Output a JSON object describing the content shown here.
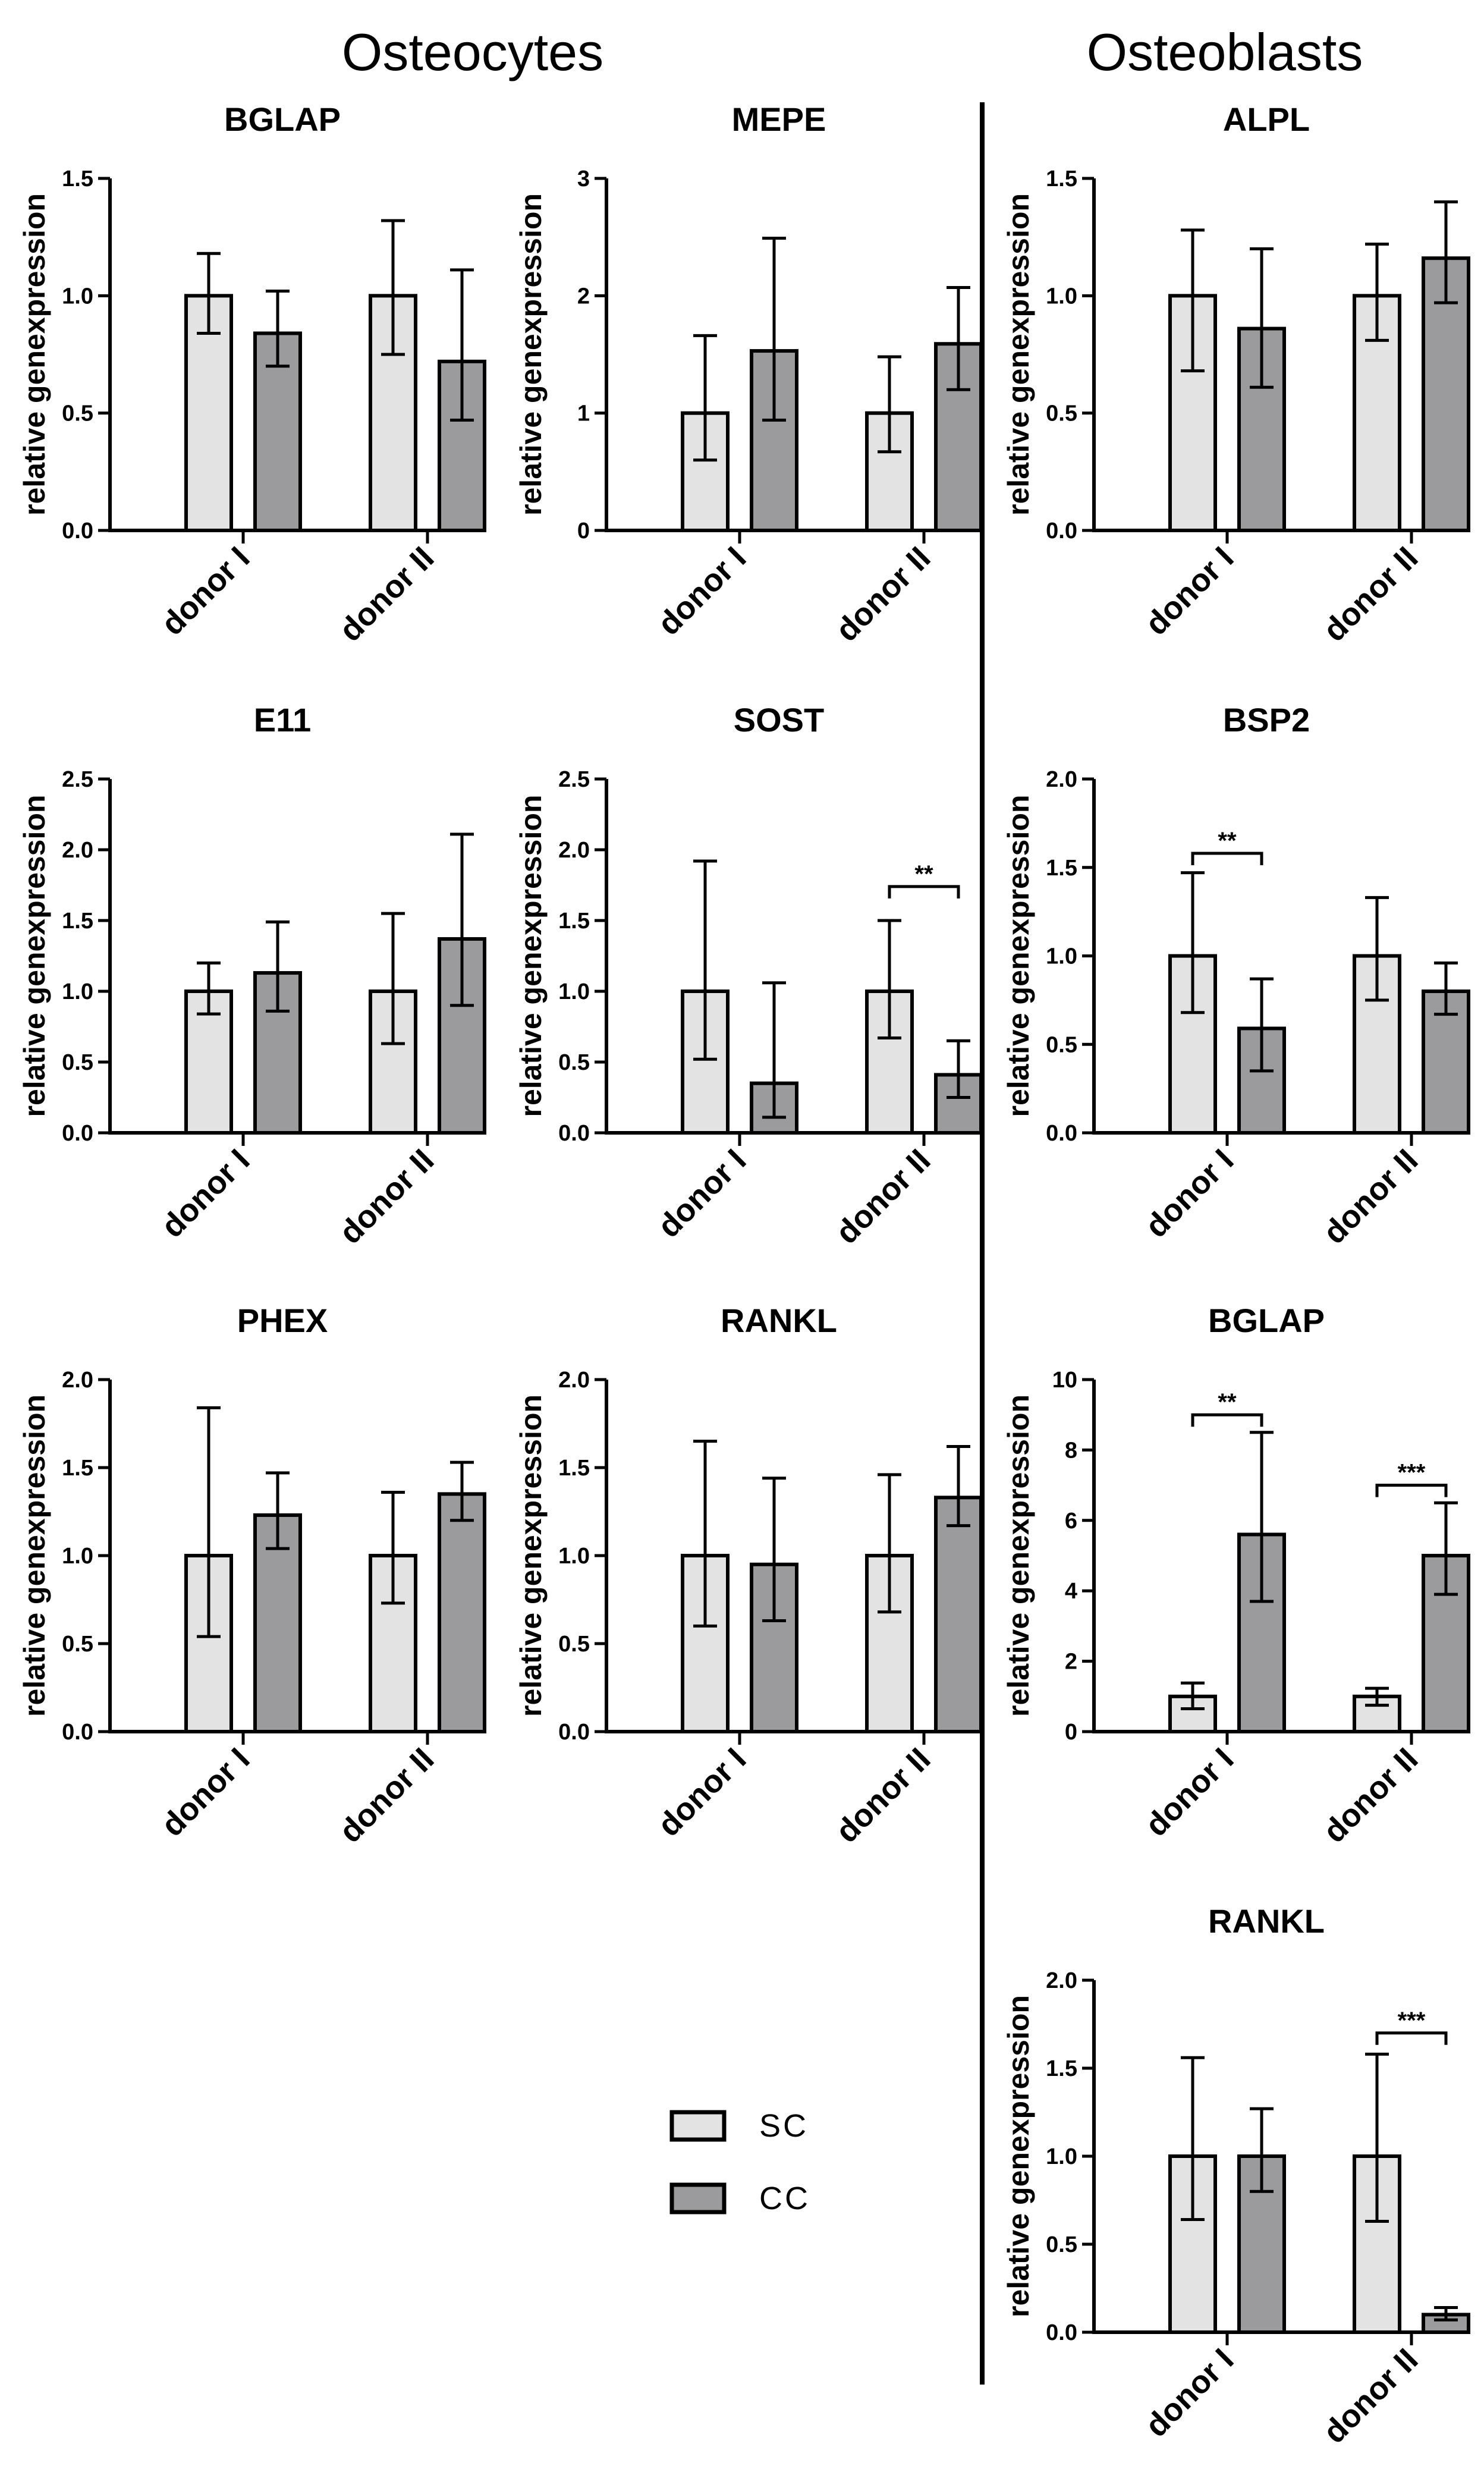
{
  "headers": {
    "left": "Osteocytes",
    "right": "Osteoblasts"
  },
  "legend": [
    {
      "label": "SC",
      "color": "#e3e3e3"
    },
    {
      "label": "CC",
      "color": "#9b9b9e"
    }
  ],
  "colors": {
    "sc": "#e3e3e3",
    "cc": "#9b9b9e",
    "stroke": "#000000"
  },
  "chart_data": [
    {
      "id": "ocy-bglap",
      "type": "bar",
      "title": "BGLAP",
      "ylabel": "relative genexpression",
      "categories": [
        "donor I",
        "donor II"
      ],
      "ylim": [
        0,
        1.5
      ],
      "yticks": [
        "0.0",
        "0.5",
        "1.0",
        "1.5"
      ],
      "series": [
        {
          "name": "SC",
          "values": [
            1.0,
            1.0
          ],
          "errors": [
            [
              0.84,
              1.18
            ],
            [
              0.75,
              1.32
            ]
          ]
        },
        {
          "name": "CC",
          "values": [
            0.84,
            0.72
          ],
          "errors": [
            [
              0.7,
              1.02
            ],
            [
              0.47,
              1.11
            ]
          ]
        }
      ],
      "significance": []
    },
    {
      "id": "ocy-mepe",
      "type": "bar",
      "title": "MEPE",
      "ylabel": "relative genexpression",
      "categories": [
        "donor I",
        "donor II"
      ],
      "ylim": [
        0,
        3
      ],
      "yticks": [
        "0",
        "1",
        "2",
        "3"
      ],
      "series": [
        {
          "name": "SC",
          "values": [
            1.0,
            1.0
          ],
          "errors": [
            [
              0.6,
              1.66
            ],
            [
              0.67,
              1.48
            ]
          ]
        },
        {
          "name": "CC",
          "values": [
            1.53,
            1.59
          ],
          "errors": [
            [
              0.94,
              2.49
            ],
            [
              1.2,
              2.07
            ]
          ]
        }
      ],
      "significance": []
    },
    {
      "id": "ocy-e11",
      "type": "bar",
      "title": "E11",
      "ylabel": "relative genexpression",
      "categories": [
        "donor I",
        "donor II"
      ],
      "ylim": [
        0,
        2.5
      ],
      "yticks": [
        "0.0",
        "0.5",
        "1.0",
        "1.5",
        "2.0",
        "2.5"
      ],
      "series": [
        {
          "name": "SC",
          "values": [
            1.0,
            1.0
          ],
          "errors": [
            [
              0.84,
              1.2
            ],
            [
              0.63,
              1.55
            ]
          ]
        },
        {
          "name": "CC",
          "values": [
            1.13,
            1.37
          ],
          "errors": [
            [
              0.86,
              1.49
            ],
            [
              0.9,
              2.11
            ]
          ]
        }
      ],
      "significance": []
    },
    {
      "id": "ocy-sost",
      "type": "bar",
      "title": "SOST",
      "ylabel": "relative genexpression",
      "categories": [
        "donor I",
        "donor II"
      ],
      "ylim": [
        0,
        2.5
      ],
      "yticks": [
        "0.0",
        "0.5",
        "1.0",
        "1.5",
        "2.0",
        "2.5"
      ],
      "series": [
        {
          "name": "SC",
          "values": [
            1.0,
            1.0
          ],
          "errors": [
            [
              0.52,
              1.92
            ],
            [
              0.67,
              1.5
            ]
          ]
        },
        {
          "name": "CC",
          "values": [
            0.35,
            0.41
          ],
          "errors": [
            [
              0.11,
              1.06
            ],
            [
              0.25,
              0.65
            ]
          ]
        }
      ],
      "significance": [
        {
          "category": 1,
          "label": "**",
          "y": 1.74
        }
      ]
    },
    {
      "id": "ocy-phex",
      "type": "bar",
      "title": "PHEX",
      "ylabel": "relative genexpression",
      "categories": [
        "donor I",
        "donor II"
      ],
      "ylim": [
        0,
        2.0
      ],
      "yticks": [
        "0.0",
        "0.5",
        "1.0",
        "1.5",
        "2.0"
      ],
      "series": [
        {
          "name": "SC",
          "values": [
            1.0,
            1.0
          ],
          "errors": [
            [
              0.54,
              1.84
            ],
            [
              0.73,
              1.36
            ]
          ]
        },
        {
          "name": "CC",
          "values": [
            1.23,
            1.35
          ],
          "errors": [
            [
              1.04,
              1.47
            ],
            [
              1.2,
              1.53
            ]
          ]
        }
      ],
      "significance": []
    },
    {
      "id": "ocy-rankl",
      "type": "bar",
      "title": "RANKL",
      "ylabel": "relative genexpression",
      "categories": [
        "donor I",
        "donor II"
      ],
      "ylim": [
        0,
        2.0
      ],
      "yticks": [
        "0.0",
        "0.5",
        "1.0",
        "1.5",
        "2.0"
      ],
      "series": [
        {
          "name": "SC",
          "values": [
            1.0,
            1.0
          ],
          "errors": [
            [
              0.6,
              1.65
            ],
            [
              0.68,
              1.46
            ]
          ]
        },
        {
          "name": "CC",
          "values": [
            0.95,
            1.33
          ],
          "errors": [
            [
              0.63,
              1.44
            ],
            [
              1.17,
              1.62
            ]
          ]
        }
      ],
      "significance": []
    },
    {
      "id": "obl-alpl",
      "type": "bar",
      "title": "ALPL",
      "ylabel": "relative genexpression",
      "categories": [
        "donor I",
        "donor II"
      ],
      "ylim": [
        0,
        1.5
      ],
      "yticks": [
        "0.0",
        "0.5",
        "1.0",
        "1.5"
      ],
      "series": [
        {
          "name": "SC",
          "values": [
            1.0,
            1.0
          ],
          "errors": [
            [
              0.68,
              1.28
            ],
            [
              0.81,
              1.22
            ]
          ]
        },
        {
          "name": "CC",
          "values": [
            0.86,
            1.16
          ],
          "errors": [
            [
              0.61,
              1.2
            ],
            [
              0.97,
              1.4
            ]
          ]
        }
      ],
      "significance": []
    },
    {
      "id": "obl-bsp2",
      "type": "bar",
      "title": "BSP2",
      "ylabel": "relative genexpression",
      "categories": [
        "donor I",
        "donor II"
      ],
      "ylim": [
        0,
        2.0
      ],
      "yticks": [
        "0.0",
        "0.5",
        "1.0",
        "1.5",
        "2.0"
      ],
      "series": [
        {
          "name": "SC",
          "values": [
            1.0,
            1.0
          ],
          "errors": [
            [
              0.68,
              1.47
            ],
            [
              0.75,
              1.33
            ]
          ]
        },
        {
          "name": "CC",
          "values": [
            0.59,
            0.8
          ],
          "errors": [
            [
              0.35,
              0.87
            ],
            [
              0.67,
              0.96
            ]
          ]
        }
      ],
      "significance": [
        {
          "category": 0,
          "label": "**",
          "y": 1.58
        }
      ]
    },
    {
      "id": "obl-bglap",
      "type": "bar",
      "title": "BGLAP",
      "ylabel": "relative genexpression",
      "categories": [
        "donor I",
        "donor II"
      ],
      "ylim": [
        0,
        10
      ],
      "yticks": [
        "0",
        "2",
        "4",
        "6",
        "8",
        "10"
      ],
      "series": [
        {
          "name": "SC",
          "values": [
            1.0,
            1.0
          ],
          "errors": [
            [
              0.65,
              1.38
            ],
            [
              0.75,
              1.23
            ]
          ]
        },
        {
          "name": "CC",
          "values": [
            5.6,
            5.0
          ],
          "errors": [
            [
              3.7,
              8.5
            ],
            [
              3.9,
              6.5
            ]
          ]
        }
      ],
      "significance": [
        {
          "category": 0,
          "label": "**",
          "y": 9.0
        },
        {
          "category": 1,
          "label": "***",
          "y": 7.0
        }
      ]
    },
    {
      "id": "obl-rankl",
      "type": "bar",
      "title": "RANKL",
      "ylabel": "relative genexpression",
      "categories": [
        "donor I",
        "donor II"
      ],
      "ylim": [
        0,
        2.0
      ],
      "yticks": [
        "0.0",
        "0.5",
        "1.0",
        "1.5",
        "2.0"
      ],
      "series": [
        {
          "name": "SC",
          "values": [
            1.0,
            1.0
          ],
          "errors": [
            [
              0.64,
              1.56
            ],
            [
              0.63,
              1.58
            ]
          ]
        },
        {
          "name": "CC",
          "values": [
            1.0,
            0.1
          ],
          "errors": [
            [
              0.8,
              1.27
            ],
            [
              0.07,
              0.14
            ]
          ]
        }
      ],
      "significance": [
        {
          "category": 1,
          "label": "***",
          "y": 1.7
        }
      ]
    }
  ]
}
